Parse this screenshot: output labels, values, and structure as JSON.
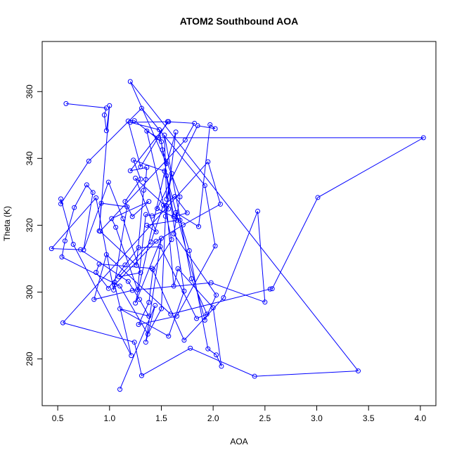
{
  "chart_data": {
    "type": "line",
    "title": "ATOM2 Southbound AOA",
    "xlabel": "AOA",
    "ylabel": "Theta (K)",
    "xlim": [
      0.35,
      4.15
    ],
    "ylim": [
      266,
      375
    ],
    "xticks": [
      "0.5",
      "1.0",
      "1.5",
      "2.0",
      "2.5",
      "3.0",
      "3.5",
      "4.0"
    ],
    "yticks": [
      "280",
      "300",
      "320",
      "340",
      "360"
    ],
    "xtick_values": [
      0.5,
      1.0,
      1.5,
      2.0,
      2.5,
      3.0,
      3.5,
      4.0
    ],
    "ytick_values": [
      280,
      300,
      320,
      340,
      360
    ],
    "grid": false,
    "series_color": "#0000ff",
    "series": [
      {
        "x": [
          0.58,
          0.97,
          0.95,
          0.97,
          1.0,
          0.9,
          0.92,
          1.17,
          1.05,
          1.04,
          0.87,
          0.44,
          0.72,
          1.18,
          1.29,
          1.38,
          1.1,
          1.57,
          1.72,
          1.55,
          1.92,
          2.03,
          1.62,
          1.68,
          1.51,
          1.5,
          1.24,
          1.18,
          1.3,
          1.56,
          1.82,
          1.73,
          0.91,
          1.26,
          1.33,
          1.35,
          1.36,
          1.2,
          1.57,
          1.2,
          1.48,
          1.62,
          1.75,
          1.63,
          1.52,
          1.4,
          1.09,
          1.3,
          1.13,
          0.99,
          0.75,
          0.84,
          0.78,
          0.66,
          0.57,
          0.54,
          1.1,
          1.37,
          1.5,
          1.54,
          1.64,
          1.53,
          1.23,
          1.3,
          1.15,
          1.22,
          1.38,
          1.02,
          1.06,
          1.27,
          1.35,
          1.41,
          1.57,
          1.25,
          1.45,
          1.36,
          1.65,
          1.64,
          1.86,
          1.97,
          2.02,
          1.85,
          1.46,
          1.68,
          1.77,
          1.95,
          2.03,
          2.08,
          2.0,
          1.66,
          1.62,
          1.55,
          1.6,
          1.55,
          1.53,
          1.79,
          1.94,
          1.84,
          1.49,
          1.28,
          1.15,
          0.99,
          0.87,
          0.9,
          1.41,
          1.72,
          2.1,
          2.43,
          2.5,
          1.98,
          1.22,
          0.85,
          0.97,
          1.59,
          2.55,
          2.57,
          3.01,
          4.03,
          1.47,
          1.36,
          1.6,
          1.42,
          1.38,
          1.28,
          1.65,
          2.02,
          1.92,
          1.31,
          0.8,
          0.53,
          0.53,
          0.65,
          1.21,
          1.05,
          1.45,
          1.71,
          2.07,
          1.95,
          0.55,
          1.24,
          1.31,
          1.78,
          2.4,
          3.4,
          1.2,
          1.55,
          1.25,
          1.5,
          1.35,
          1.44,
          1.1
        ],
        "y": [
          356.4,
          355.1,
          353.0,
          348.3,
          355.8,
          318.3,
          326.6,
          325.5,
          302.9,
          300.6,
          328.2,
          313.0,
          312.7,
          303.2,
          297.8,
          292.8,
          295.0,
          286.8,
          300.3,
          334.8,
          291.6,
          299.1,
          317.4,
          328.5,
          342.6,
          345.0,
          351.3,
          351.2,
          337.5,
          351.0,
          350.5,
          345.5,
          318.2,
          308.0,
          330.5,
          333.7,
          337.3,
          336.3,
          351.0,
          350.8,
          348.6,
          322.6,
          323.7,
          328.6,
          326.0,
          315.0,
          304.6,
          305.8,
          322.0,
          332.9,
          312.6,
          329.8,
          332.1,
          325.3,
          315.3,
          310.5,
          301.8,
          287.4,
          295.0,
          322.7,
          347.9,
          336.2,
          339.5,
          333.8,
          327.1,
          322.6,
          327.1,
          322.0,
          319.4,
          300.7,
          323.2,
          322.8,
          324.9,
          334.1,
          318.0,
          320.0,
          321.5,
          323.8,
          319.6,
          350.1,
          348.9,
          349.8,
          325.0,
          321.5,
          312.4,
          283.0,
          281.2,
          277.8,
          295.3,
          307.0,
          301.8,
          325.8,
          335.5,
          327.8,
          347.0,
          304.0,
          293.4,
          292.1,
          313.6,
          313.3,
          308.1,
          301.1,
          305.9,
          308.4,
          307.1,
          285.6,
          298.3,
          324.2,
          297.0,
          302.8,
          300.5,
          297.8,
          311.2,
          293.4,
          300.9,
          301.0,
          328.3,
          346.2,
          346.2,
          348.2,
          315.7,
          306.7,
          296.9,
          290.3,
          292.8,
          313.8,
          331.9,
          355.0,
          339.2,
          326.4,
          327.9,
          314.3,
          281.0,
          302.2,
          315.2,
          320.1,
          326.3,
          339.0,
          290.8,
          285.0,
          275.0,
          283.2,
          274.8,
          276.4,
          363.0,
          338.5,
          296.7,
          316.1,
          285.0,
          296.0,
          270.9
        ]
      }
    ]
  }
}
